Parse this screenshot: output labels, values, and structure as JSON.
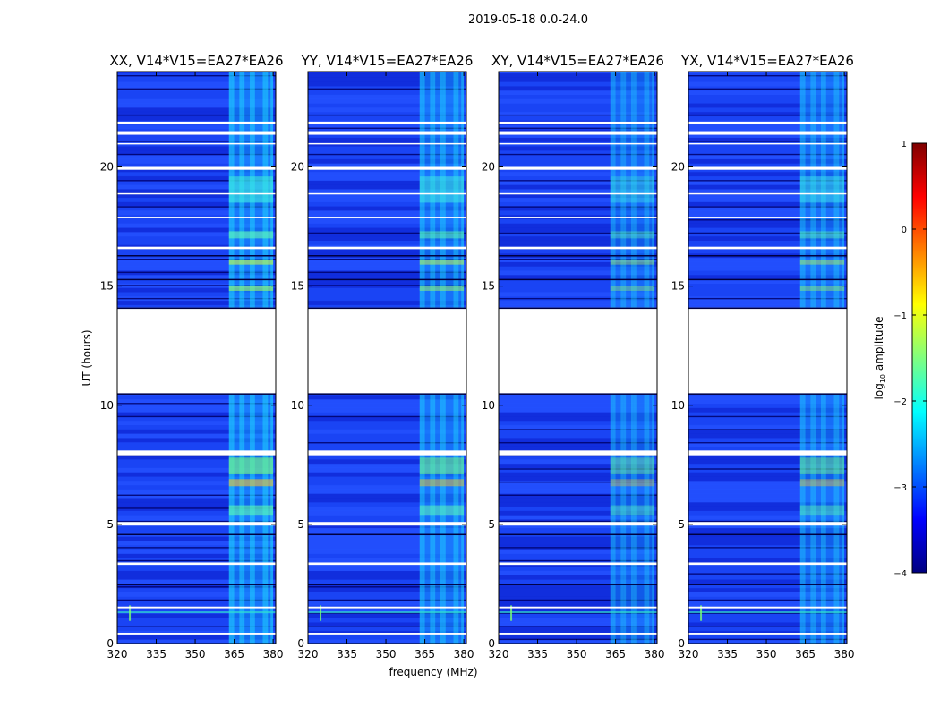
{
  "figure": {
    "suptitle": "2019-05-18 0.0-24.0"
  },
  "chart_data": {
    "type": "heatmap",
    "description_type": "dynamic spectrum waterfall",
    "xlabel": "frequency (MHz)",
    "ylabel": "UT (hours)",
    "xlim": [
      320,
      381
    ],
    "ylim": [
      0,
      24
    ],
    "xticks": [
      320,
      335,
      350,
      365,
      380
    ],
    "yticks": [
      0,
      5,
      10,
      15,
      20
    ],
    "panels": [
      {
        "title": "XX, V14*V15=EA27*EA26",
        "pol": "XX",
        "intensity": 1.0
      },
      {
        "title": "YY, V14*V15=EA27*EA26",
        "pol": "YY",
        "intensity": 0.85
      },
      {
        "title": "XY, V14*V15=EA27*EA26",
        "pol": "XY",
        "intensity": 0.6
      },
      {
        "title": "YX, V14*V15=EA27*EA26",
        "pol": "YX",
        "intensity": 0.7
      }
    ],
    "missing_data_ut": [
      [
        14.1,
        10.5
      ],
      [
        21.35,
        21.5
      ],
      [
        20.0,
        19.88
      ],
      [
        21.9,
        21.8
      ],
      [
        16.65,
        16.55
      ],
      [
        8.1,
        7.9
      ],
      [
        5.1,
        4.95
      ],
      [
        3.4,
        3.3
      ],
      [
        1.55,
        1.48
      ],
      [
        0.45,
        0.38
      ],
      [
        21.0,
        20.95
      ],
      [
        18.9,
        18.85
      ],
      [
        17.9,
        17.85
      ]
    ],
    "rfi_band_mhz": [
      363,
      380
    ],
    "rfi_columns_mhz": [
      363,
      364,
      367,
      368,
      371,
      372,
      376,
      377,
      379
    ],
    "colorbar": {
      "label_main": "log",
      "label_sub": "10",
      "label_tail": " amplitude",
      "min": -4,
      "max": 1,
      "ticks": [
        "1",
        "0",
        "−1",
        "−2",
        "−3",
        "−4"
      ],
      "ticks_values": [
        1,
        0,
        -1,
        -2,
        -3,
        -4
      ],
      "colormap": "jet"
    }
  }
}
